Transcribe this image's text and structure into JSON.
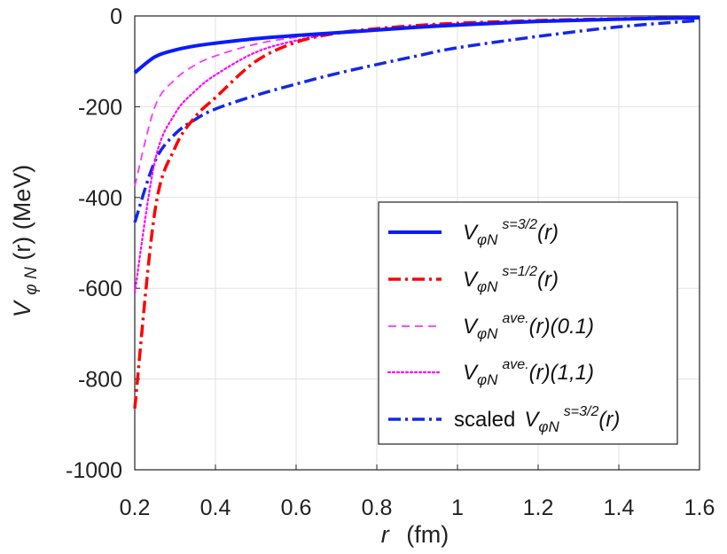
{
  "chart_data": {
    "type": "line",
    "title": "",
    "xlabel_var": "r",
    "xlabel_unit": "(fm)",
    "ylabel_var": "V",
    "ylabel_sub": "φ N",
    "ylabel_rest": "(r) (MeV)",
    "xlim": [
      0.2,
      1.6
    ],
    "ylim": [
      -1000,
      0
    ],
    "xticks": [
      0.2,
      0.4,
      0.6,
      0.8,
      1.0,
      1.2,
      1.4,
      1.6
    ],
    "xtick_labels": [
      "0.2",
      "0.4",
      "0.6",
      "0.8",
      "1",
      "1.2",
      "1.4",
      "1.6"
    ],
    "yticks": [
      -1000,
      -800,
      -600,
      -400,
      -200,
      0
    ],
    "ytick_labels": [
      "-1000",
      "-800",
      "-600",
      "-400",
      "-200",
      "0"
    ],
    "grid": true,
    "legend_position": "bottom-right",
    "x": [
      0.2,
      0.25,
      0.3,
      0.35,
      0.4,
      0.5,
      0.6,
      0.7,
      0.8,
      0.9,
      1.0,
      1.2,
      1.4,
      1.6
    ],
    "series": [
      {
        "name": "V_φN^{s=3/2}(r)",
        "color": "#0a1aff",
        "style": "solid",
        "values": [
          -125,
          -90,
          -75,
          -66,
          -60,
          -50,
          -43,
          -37,
          -31,
          -25,
          -20,
          -12,
          -7,
          -4
        ]
      },
      {
        "name": "V_φN^{s=1/2}(r)",
        "color": "#ff0000",
        "style": "dashdot",
        "values": [
          -865,
          -430,
          -290,
          -222,
          -180,
          -100,
          -58,
          -38,
          -28,
          -21,
          -16,
          -10,
          -6,
          -3
        ]
      },
      {
        "name": "V_φN^{ave.}(r)(0.1)",
        "color": "#ff33ff",
        "style": "dashed",
        "values": [
          -375,
          -200,
          -140,
          -108,
          -88,
          -62,
          -47,
          -38,
          -30,
          -24,
          -19,
          -11,
          -6,
          -3
        ]
      },
      {
        "name": "V_φN^{ave.}(r)(1,1)",
        "color": "#ff00ff",
        "style": "dotted",
        "values": [
          -610,
          -320,
          -215,
          -165,
          -130,
          -80,
          -54,
          -38,
          -29,
          -22,
          -17,
          -10,
          -6,
          -3
        ]
      },
      {
        "name": "scaled V_φN^{s=3/2}(r)",
        "color": "#1428e6",
        "style": "dashdot",
        "values": [
          -455,
          -320,
          -260,
          -228,
          -205,
          -175,
          -150,
          -127,
          -107,
          -88,
          -70,
          -45,
          -24,
          -10
        ]
      }
    ],
    "legend": [
      {
        "prefix": "",
        "var": "V",
        "sub": "φN",
        "sup": "s=3/2",
        "rest": "(r)"
      },
      {
        "prefix": "",
        "var": "V",
        "sub": "φN",
        "sup": "s=1/2",
        "rest": "(r)"
      },
      {
        "prefix": "",
        "var": "V",
        "sub": "φN",
        "sup": "ave.",
        "rest": "(r)(0.1)"
      },
      {
        "prefix": "",
        "var": "V",
        "sub": "φN",
        "sup": "ave.",
        "rest": "(r)(1,1)"
      },
      {
        "prefix": "scaled",
        "var": "V",
        "sub": "φN",
        "sup": "s=3/2",
        "rest": "(r)"
      }
    ]
  }
}
